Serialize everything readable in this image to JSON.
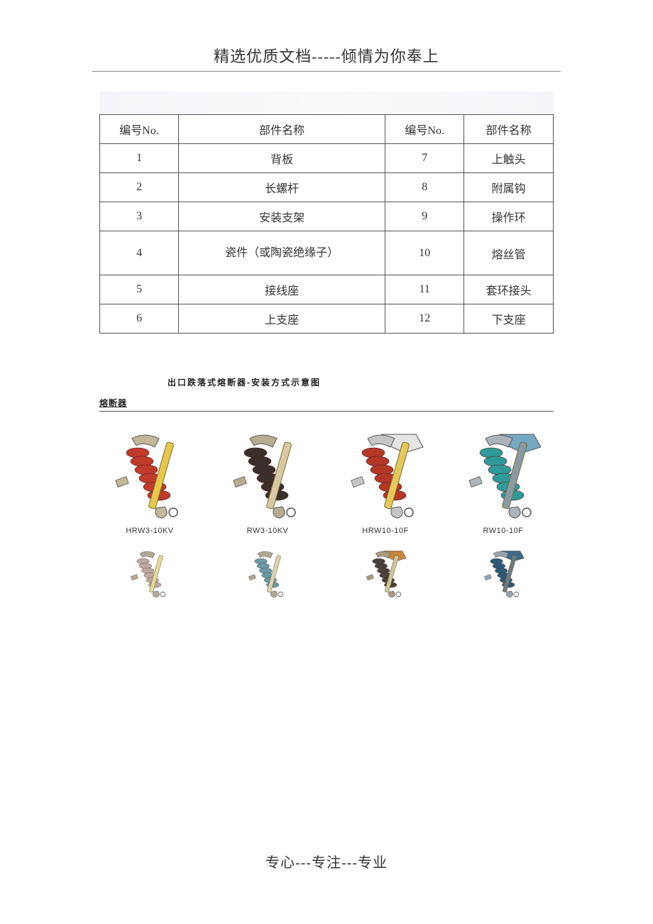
{
  "header": {
    "text": "精选优质文档-----倾情为你奉上"
  },
  "footer": {
    "text": "专心---专注---专业"
  },
  "parts_table": {
    "columns": [
      "编号No.",
      "部件名称",
      "编号No.",
      "部件名称"
    ],
    "rows": [
      {
        "c1": "1",
        "c2": "背板",
        "c3": "7",
        "c4": "上触头"
      },
      {
        "c1": "2",
        "c2": "长螺杆",
        "c3": "8",
        "c4": "附属钩"
      },
      {
        "c1": "3",
        "c2": "安装支架",
        "c3": "9",
        "c4": "操作环"
      },
      {
        "c1": "4",
        "c2": "瓷件（或陶瓷绝缘子）",
        "c3": "10",
        "c4": "熔丝管",
        "tall": true
      },
      {
        "c1": "5",
        "c2": "接线座",
        "c3": "11",
        "c4": "套环接头"
      },
      {
        "c1": "6",
        "c2": "上支座",
        "c3": "12",
        "c4": "下支座"
      }
    ]
  },
  "diagram": {
    "title": "出口跌落式熔断器-安装方式示意图",
    "section_label": "熔断器"
  },
  "products": {
    "row1": [
      {
        "name": "HRW3-10KV",
        "insulator": "#c03a2a",
        "tube": "#e6c84a",
        "hardware": "#c2b898",
        "bg": "#ffffff"
      },
      {
        "name": "RW3-10KV",
        "insulator": "#3a2f2a",
        "tube": "#d8c8a4",
        "hardware": "#b8ac90",
        "bg": "#ffffff"
      },
      {
        "name": "HRW10-10F",
        "insulator": "#b53726",
        "tube": "#e4c85a",
        "hardware": "#c6c6c6",
        "bg": "#ffffff",
        "hood": "#e6e6e6"
      },
      {
        "name": "RW10-10F",
        "insulator": "#2f9a9a",
        "tube": "#8a9aa2",
        "hardware": "#aeb4b8",
        "bg": "#ffffff",
        "hood": "#74a7c2"
      }
    ],
    "row2": [
      {
        "insulator": "#bfa8a2",
        "tube": "#e3da9f",
        "hardware": "#b2aa94"
      },
      {
        "insulator": "#6a9aa6",
        "tube": "#dcd2b4",
        "hardware": "#b0a892"
      },
      {
        "insulator": "#4a4238",
        "tube": "#d0c4a0",
        "hardware": "#a89a82",
        "hood": "#c8863c"
      },
      {
        "insulator": "#2d5a78",
        "tube": "#6a7a82",
        "hardware": "#9aa4aa",
        "hood": "#3f6a86"
      }
    ]
  }
}
